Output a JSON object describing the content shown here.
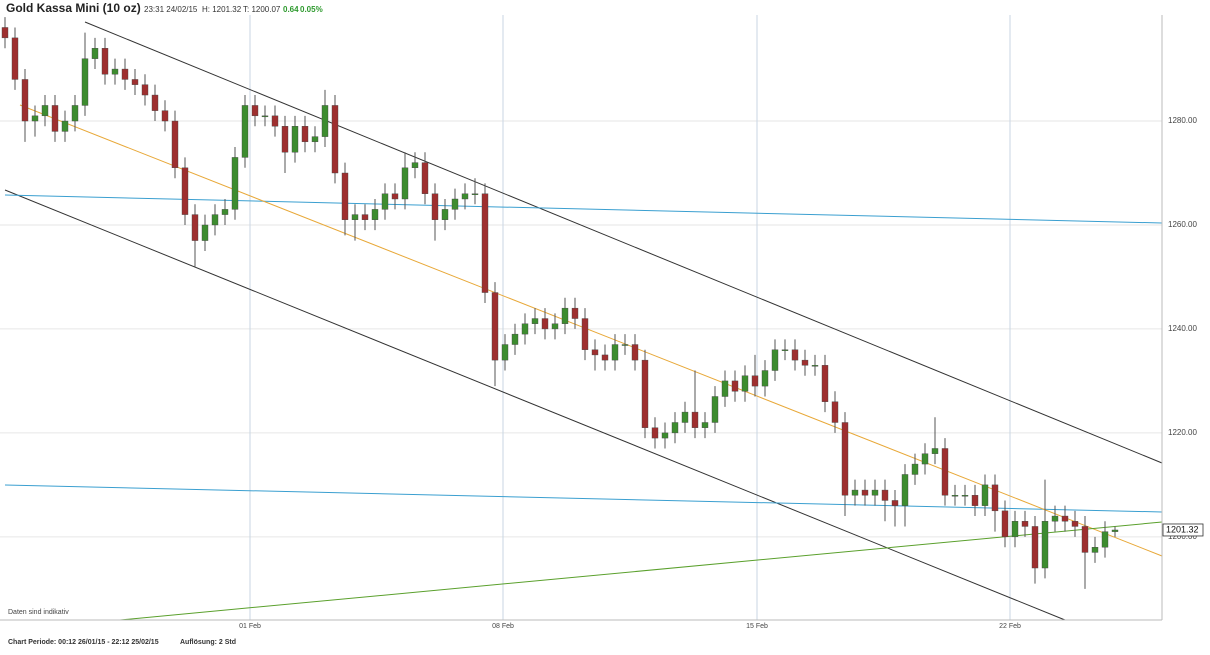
{
  "chart_data": {
    "type": "candlestick",
    "title": "Gold Kassa Mini (10 oz)",
    "header": {
      "time": "23:31 24/02/15",
      "high": "H: 1201.32",
      "low": "T: 1200.07",
      "change": "0.64",
      "change_pct": "0.05%"
    },
    "footer": {
      "period": "Chart Periode: 00:12 26/01/15 - 22:12 25/02/15",
      "resolution": "Auflösung: 2 Std"
    },
    "note": "Daten sind indikativ",
    "last_price": 1201.32,
    "up_color": "#3d8c2f",
    "down_color": "#9e2f2f",
    "open": [
      1298,
      1296,
      1288,
      1280,
      1281,
      1283,
      1278,
      1280,
      1283,
      1292,
      1294,
      1289,
      1290,
      1288,
      1287,
      1285,
      1282,
      1280,
      1271,
      1262,
      1257,
      1260,
      1262,
      1263,
      1273,
      1283,
      1281,
      1281,
      1279,
      1274,
      1279,
      1276,
      1277,
      1283,
      1270,
      1261,
      1262,
      1261,
      1263,
      1266,
      1265,
      1271,
      1272,
      1266,
      1261,
      1263,
      1265,
      1266,
      1266,
      1247,
      1234,
      1237,
      1239,
      1241,
      1242,
      1240,
      1241,
      1244,
      1242,
      1236,
      1235,
      1234,
      1237,
      1237,
      1234,
      1221,
      1219,
      1220,
      1222,
      1224,
      1221,
      1222,
      1227,
      1230,
      1228,
      1231,
      1229,
      1232,
      1236,
      1236,
      1234,
      1233,
      1233,
      1226,
      1222,
      1208,
      1209,
      1208,
      1209,
      1207,
      1206,
      1212,
      1214,
      1216,
      1217,
      1208,
      1208,
      1208,
      1206,
      1210,
      1205,
      1200,
      1203,
      1202,
      1194,
      1203,
      1204,
      1203,
      1202,
      1197,
      1198,
      1201
    ],
    "high": [
      1300,
      1298,
      1290,
      1283,
      1285,
      1285,
      1282,
      1285,
      1297,
      1296,
      1296,
      1292,
      1292,
      1290,
      1289,
      1287,
      1284,
      1282,
      1273,
      1264,
      1262,
      1264,
      1265,
      1275,
      1285,
      1285,
      1283,
      1283,
      1281,
      1281,
      1281,
      1279,
      1286,
      1285,
      1272,
      1264,
      1264,
      1265,
      1268,
      1268,
      1274,
      1274,
      1274,
      1268,
      1265,
      1267,
      1268,
      1269,
      1268,
      1249,
      1239,
      1241,
      1243,
      1244,
      1244,
      1243,
      1246,
      1246,
      1244,
      1238,
      1237,
      1239,
      1239,
      1239,
      1236,
      1223,
      1222,
      1224,
      1226,
      1232,
      1224,
      1229,
      1232,
      1232,
      1233,
      1235,
      1234,
      1238,
      1238,
      1238,
      1236,
      1235,
      1235,
      1228,
      1224,
      1211,
      1211,
      1211,
      1211,
      1209,
      1214,
      1216,
      1218,
      1223,
      1219,
      1210,
      1210,
      1210,
      1212,
      1212,
      1207,
      1205,
      1205,
      1204,
      1211,
      1206,
      1206,
      1205,
      1204,
      1200,
      1203,
      1202
    ],
    "low": [
      1294,
      1286,
      1276,
      1277,
      1279,
      1276,
      1276,
      1278,
      1281,
      1290,
      1287,
      1287,
      1286,
      1285,
      1283,
      1280,
      1278,
      1269,
      1260,
      1252,
      1255,
      1258,
      1260,
      1261,
      1271,
      1279,
      1279,
      1277,
      1270,
      1272,
      1274,
      1274,
      1275,
      1268,
      1258,
      1257,
      1259,
      1259,
      1261,
      1263,
      1263,
      1269,
      1264,
      1257,
      1259,
      1261,
      1263,
      1264,
      1245,
      1229,
      1232,
      1235,
      1237,
      1239,
      1238,
      1238,
      1239,
      1240,
      1234,
      1232,
      1232,
      1232,
      1235,
      1232,
      1219,
      1217,
      1217,
      1218,
      1220,
      1219,
      1219,
      1220,
      1225,
      1226,
      1226,
      1227,
      1227,
      1230,
      1234,
      1232,
      1231,
      1231,
      1224,
      1220,
      1204,
      1206,
      1206,
      1206,
      1203,
      1202,
      1202,
      1210,
      1212,
      1214,
      1206,
      1206,
      1206,
      1204,
      1204,
      1201,
      1198,
      1198,
      1200,
      1191,
      1192,
      1201,
      1201,
      1200,
      1190,
      1195,
      1196,
      1200
    ],
    "close": [
      1296,
      1288,
      1280,
      1281,
      1283,
      1278,
      1280,
      1283,
      1292,
      1294,
      1289,
      1290,
      1288,
      1287,
      1285,
      1282,
      1280,
      1271,
      1262,
      1257,
      1260,
      1262,
      1263,
      1273,
      1283,
      1281,
      1281,
      1279,
      1274,
      1279,
      1276,
      1277,
      1283,
      1270,
      1261,
      1262,
      1261,
      1263,
      1266,
      1265,
      1271,
      1272,
      1266,
      1261,
      1263,
      1265,
      1266,
      1266,
      1247,
      1234,
      1237,
      1239,
      1241,
      1242,
      1240,
      1241,
      1244,
      1242,
      1236,
      1235,
      1234,
      1237,
      1237,
      1234,
      1221,
      1219,
      1220,
      1222,
      1224,
      1221,
      1222,
      1227,
      1230,
      1228,
      1231,
      1229,
      1232,
      1236,
      1236,
      1234,
      1233,
      1233,
      1226,
      1222,
      1208,
      1209,
      1208,
      1209,
      1207,
      1206,
      1212,
      1214,
      1216,
      1217,
      1208,
      1208,
      1208,
      1206,
      1210,
      1205,
      1200,
      1203,
      1202,
      1194,
      1203,
      1204,
      1203,
      1202,
      1197,
      1198,
      1201,
      1201.32
    ],
    "xlim": [
      -0.5,
      115.7
    ],
    "xticks": [
      {
        "value": 24.5,
        "label": "01 Feb"
      },
      {
        "value": 49.8,
        "label": "08 Feb"
      },
      {
        "value": 75.2,
        "label": "15 Feb"
      },
      {
        "value": 100.5,
        "label": "22 Feb"
      }
    ],
    "ylim": [
      1184,
      1300.4
    ],
    "yticks": [
      {
        "value": 1200,
        "label": "1200.00"
      },
      {
        "value": 1220,
        "label": "1220.00"
      },
      {
        "value": 1240,
        "label": "1240.00"
      },
      {
        "value": 1260,
        "label": "1260.00"
      },
      {
        "value": 1280,
        "label": "1280.00"
      }
    ],
    "grid": true
  }
}
